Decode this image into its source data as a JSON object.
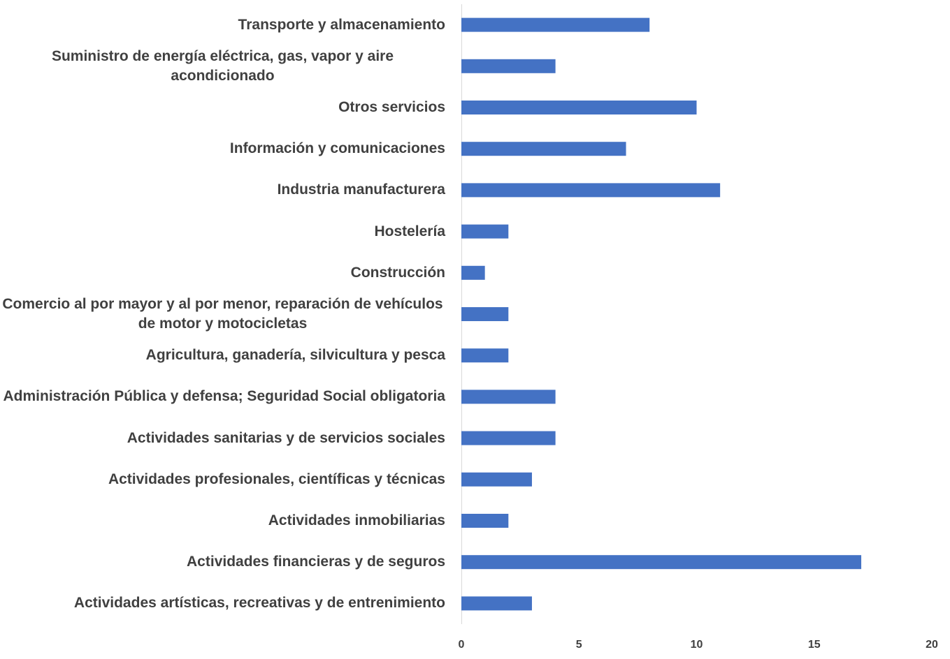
{
  "chart_data": {
    "type": "bar",
    "orientation": "horizontal",
    "categories": [
      "Transporte y almacenamiento",
      "Suministro de energía eléctrica, gas, vapor y aire acondicionado",
      "Otros servicios",
      "Información y comunicaciones",
      "Industria manufacturera",
      "Hostelería",
      "Construcción",
      "Comercio al por mayor y al por menor, reparación de vehículos de motor y motocicletas",
      "Agricultura, ganadería, silvicultura y pesca",
      "Administración Pública y defensa; Seguridad Social obligatoria",
      "Actividades sanitarias y de servicios sociales",
      "Actividades profesionales, científicas y técnicas",
      "Actividades inmobiliarias",
      "Actividades financieras y de seguros",
      "Actividades artísticas, recreativas y de entrenimiento"
    ],
    "values": [
      8,
      4,
      10,
      7,
      11,
      2,
      1,
      2,
      2,
      4,
      4,
      3,
      2,
      17,
      3
    ],
    "color": "#4472c4",
    "xlim": [
      0,
      20
    ],
    "xticks": [
      0,
      5,
      10,
      15,
      20
    ],
    "grid": false
  }
}
